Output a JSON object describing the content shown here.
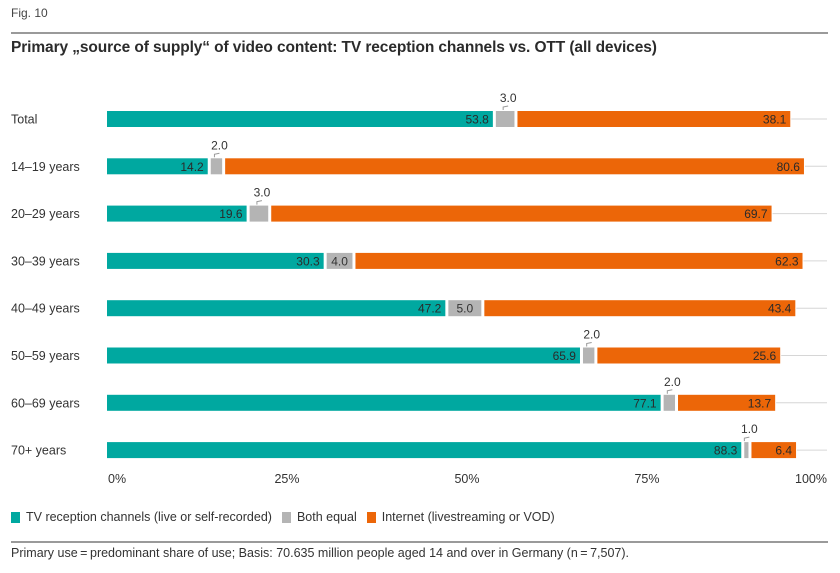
{
  "figure": {
    "label": "Fig. 10",
    "title": "Primary „source of supply“ of video content: TV reception channels vs. OTT (all devices)",
    "footnote": "Primary use = predominant share of use; Basis: 70.635 million people aged 14 and over in Germany (n = 7,507)."
  },
  "colors": {
    "tv": "#00A8A0",
    "both": "#B4B4B4",
    "internet": "#EC6608",
    "guide_line": "#d6d6d6",
    "text": "#333333"
  },
  "chart_data": {
    "type": "bar",
    "orientation": "horizontal",
    "stacked": true,
    "title": "Primary „source of supply“ of video content: TV reception channels vs. OTT (all devices)",
    "xlabel": "",
    "ylabel": "",
    "xlim": [
      0,
      100
    ],
    "x_ticks": [
      "0%",
      "25%",
      "50%",
      "75%",
      "100%"
    ],
    "x_tick_values": [
      0,
      25,
      50,
      75,
      100
    ],
    "grid": false,
    "legend_position": "bottom-left",
    "categories": [
      "Total",
      "14–19 years",
      "20–29 years",
      "30–39 years",
      "40–49 years",
      "50–59 years",
      "60–69 years",
      "70+ years"
    ],
    "series": [
      {
        "name": "TV reception channels (live or self-recorded)",
        "key": "tv",
        "values": [
          53.8,
          14.2,
          19.6,
          30.3,
          47.2,
          65.9,
          77.1,
          88.3
        ],
        "labels": [
          "53.8",
          "14.2",
          "19.6",
          "30.3",
          "47.2",
          "65.9",
          "77.1",
          "88.3"
        ]
      },
      {
        "name": "Both equal",
        "key": "both",
        "values": [
          3.0,
          2.0,
          3.0,
          4.0,
          5.0,
          2.0,
          2.0,
          1.0
        ],
        "labels": [
          "3.0",
          "2.0",
          "3.0",
          "4.0",
          "5.0",
          "2.0",
          "2.0",
          "1.0"
        ],
        "label_outside": [
          true,
          true,
          true,
          false,
          false,
          true,
          true,
          true
        ]
      },
      {
        "name": "Internet (livestreaming or VOD)",
        "key": "internet",
        "values": [
          38.1,
          80.6,
          69.7,
          62.3,
          43.4,
          25.6,
          13.7,
          6.4
        ],
        "labels": [
          "38.1",
          "80.6",
          "69.7",
          "62.3",
          "43.4",
          "25.6",
          "13.7",
          "6.4"
        ]
      }
    ]
  }
}
